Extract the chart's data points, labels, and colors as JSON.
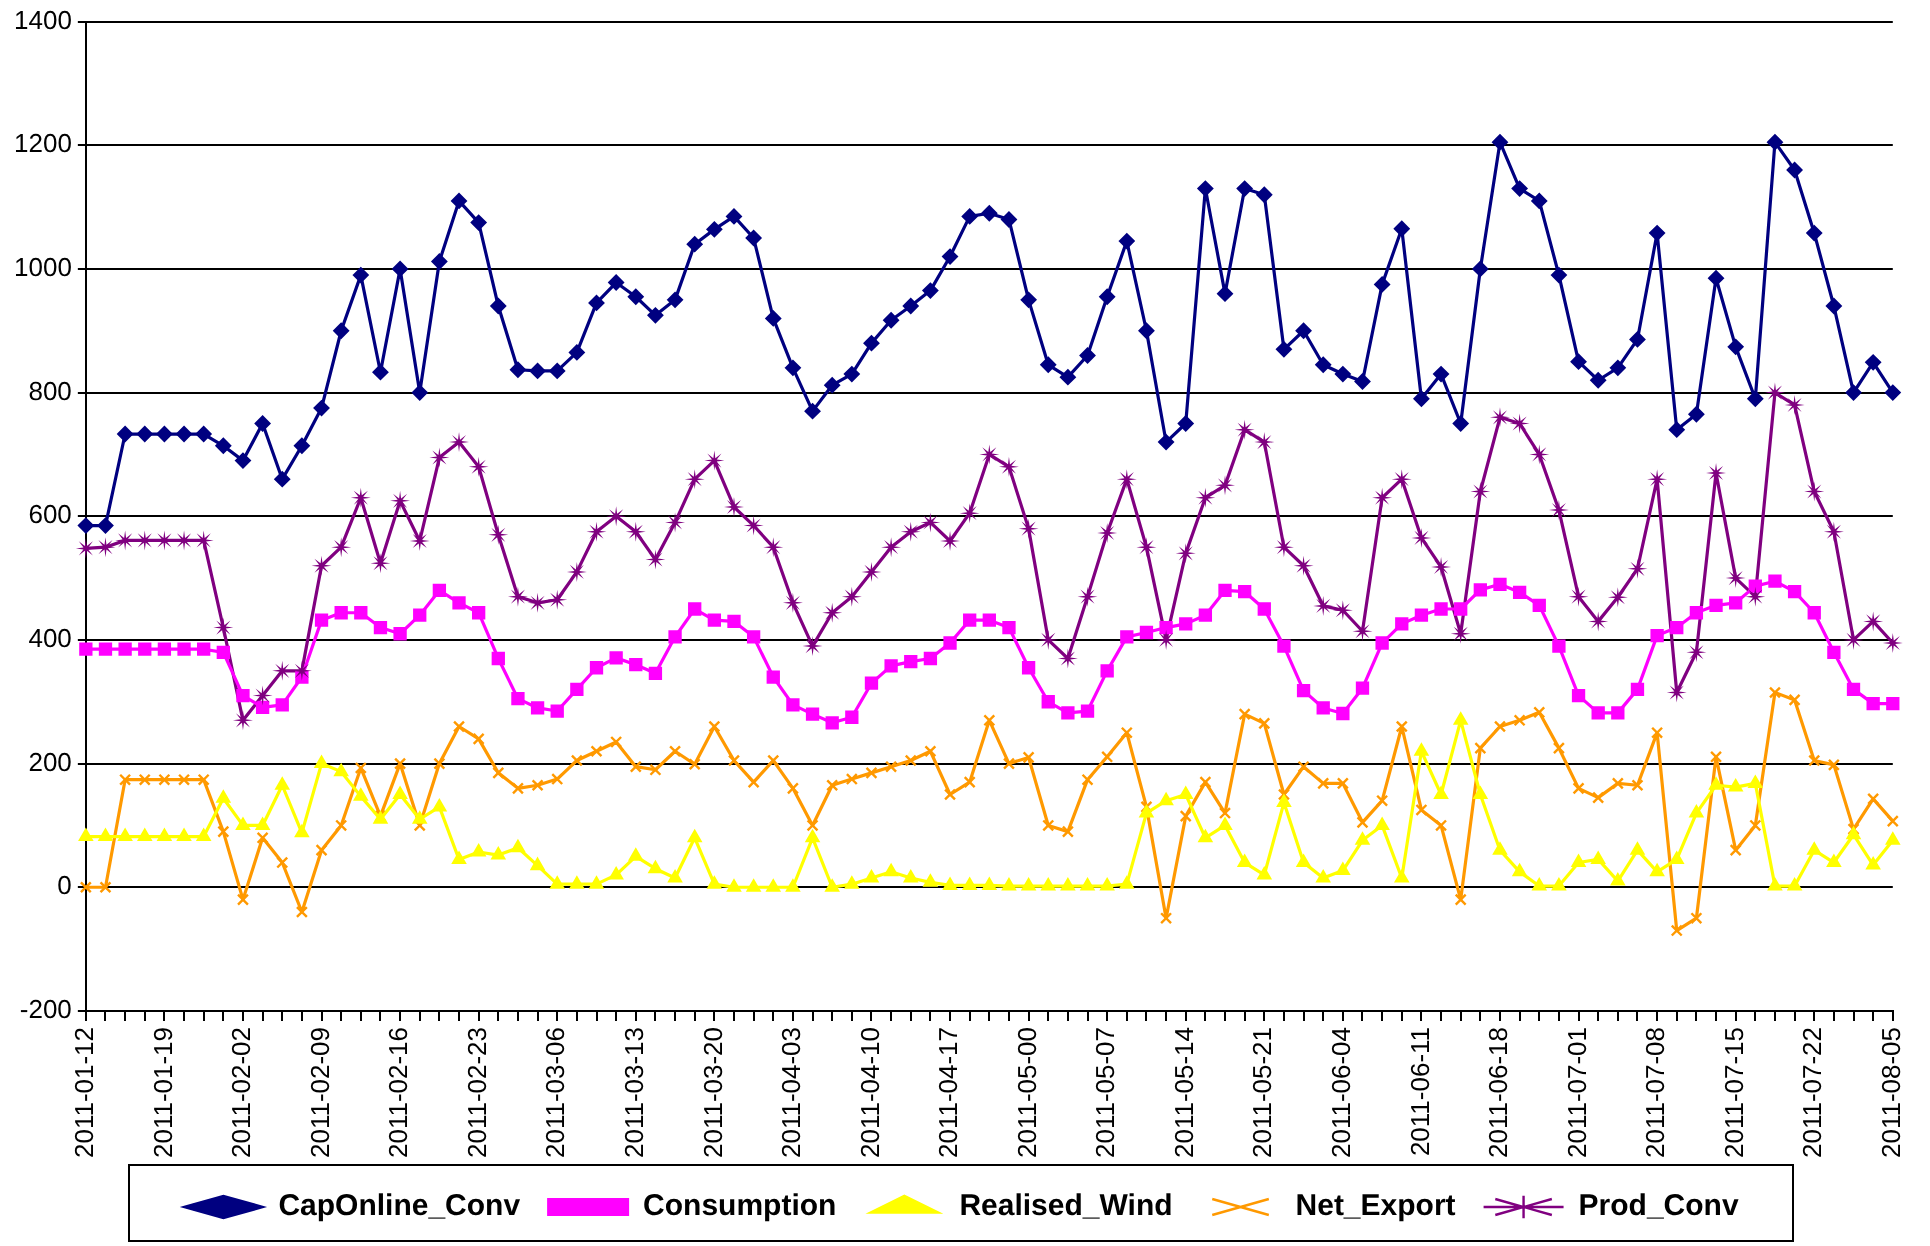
{
  "chart_data": {
    "type": "line",
    "categories": [
      "2011-01-12",
      null,
      null,
      null,
      "2011-01-19",
      null,
      null,
      null,
      "2011-02-02",
      null,
      null,
      null,
      "2011-02-09",
      null,
      null,
      null,
      "2011-02-16",
      null,
      null,
      null,
      "2011-02-23",
      null,
      null,
      null,
      "2011-03-06",
      null,
      null,
      null,
      "2011-03-13",
      null,
      null,
      null,
      "2011-03-20",
      null,
      null,
      null,
      "2011-04-03",
      null,
      null,
      null,
      "2011-04-10",
      null,
      null,
      null,
      "2011-04-17",
      null,
      null,
      null,
      "2011-05-00",
      null,
      null,
      null,
      "2011-05-07",
      null,
      null,
      null,
      "2011-05-14",
      null,
      null,
      null,
      "2011-05-21",
      null,
      null,
      null,
      "2011-06-04",
      null,
      null,
      null,
      "2011-06-11",
      null,
      null,
      null,
      "2011-06-18",
      null,
      null,
      null,
      "2011-07-01",
      null,
      null,
      null,
      "2011-07-08",
      null,
      null,
      null,
      "2011-07-15",
      null,
      null,
      null,
      "2011-07-22",
      null,
      null,
      null,
      "2011-08-05"
    ],
    "series": [
      {
        "name": "CapOnline_Conv",
        "color": "#000080",
        "marker": "diamond",
        "values": [
          585,
          585,
          733,
          733,
          733,
          733,
          733,
          714,
          690,
          750,
          660,
          714,
          775,
          900,
          990,
          833,
          1000,
          800,
          1012,
          1110,
          1075,
          940,
          837,
          835,
          835,
          865,
          945,
          978,
          955,
          925,
          950,
          1040,
          1064,
          1085,
          1050,
          920,
          840,
          770,
          812,
          830,
          880,
          917,
          940,
          965,
          1020,
          1085,
          1090,
          1080,
          950,
          845,
          825,
          860,
          955,
          1045,
          900,
          720,
          750,
          1130,
          960,
          1130,
          1120,
          870,
          900,
          845,
          830,
          818,
          975,
          1065,
          790,
          830,
          750,
          1000,
          1205,
          1130,
          1110,
          990,
          850,
          820,
          840,
          886,
          1058,
          740,
          765,
          985,
          874,
          790,
          1205,
          1160,
          1058,
          940,
          800,
          849,
          800
        ]
      },
      {
        "name": "Consumption",
        "color": "#ff00ff",
        "marker": "square",
        "values": [
          385,
          385,
          385,
          385,
          385,
          385,
          385,
          380,
          310,
          291,
          295,
          340,
          432,
          444,
          444,
          420,
          410,
          440,
          480,
          460,
          444,
          370,
          305,
          290,
          285,
          320,
          355,
          371,
          360,
          346,
          405,
          450,
          432,
          430,
          405,
          340,
          295,
          280,
          266,
          275,
          330,
          358,
          365,
          370,
          395,
          432,
          432,
          420,
          355,
          300,
          282,
          285,
          350,
          405,
          412,
          420,
          426,
          440,
          480,
          478,
          450,
          390,
          318,
          290,
          281,
          322,
          395,
          426,
          440,
          450,
          450,
          481,
          490,
          477,
          456,
          390,
          310,
          282,
          282,
          320,
          407,
          420,
          444,
          456,
          460,
          487,
          495,
          478,
          444,
          380,
          320,
          297,
          297
        ]
      },
      {
        "name": "Realised_Wind",
        "color": "#ffff00",
        "marker": "triangle",
        "values": [
          82,
          82,
          82,
          82,
          82,
          82,
          82,
          144,
          100,
          100,
          165,
          88,
          200,
          187,
          147,
          110,
          150,
          110,
          130,
          45,
          57,
          52,
          64,
          35,
          5,
          5,
          5,
          20,
          50,
          30,
          15,
          80,
          5,
          0,
          0,
          0,
          0,
          80,
          0,
          5,
          15,
          25,
          15,
          8,
          3,
          3,
          3,
          2,
          2,
          2,
          2,
          2,
          2,
          5,
          120,
          140,
          150,
          80,
          100,
          40,
          20,
          137,
          40,
          15,
          27,
          76,
          100,
          15,
          220,
          150,
          270,
          150,
          60,
          25,
          2,
          2,
          40,
          45,
          10,
          60,
          25,
          45,
          120,
          165,
          162,
          168,
          2,
          2,
          60,
          40,
          85,
          36,
          76
        ]
      },
      {
        "name": "Net_Export",
        "color": "#ff9900",
        "marker": "cross",
        "values": [
          0,
          0,
          174,
          174,
          174,
          174,
          174,
          90,
          -20,
          80,
          40,
          -40,
          60,
          100,
          193,
          115,
          200,
          100,
          200,
          260,
          240,
          185,
          160,
          165,
          175,
          205,
          220,
          235,
          195,
          190,
          220,
          199,
          260,
          205,
          170,
          205,
          160,
          100,
          165,
          175,
          185,
          195,
          205,
          220,
          150,
          170,
          270,
          200,
          210,
          100,
          90,
          174,
          211,
          250,
          130,
          -50,
          115,
          170,
          120,
          280,
          265,
          150,
          195,
          168,
          168,
          105,
          140,
          260,
          125,
          100,
          -20,
          225,
          260,
          270,
          283,
          225,
          160,
          145,
          168,
          165,
          250,
          -70,
          -50,
          211,
          60,
          100,
          315,
          303,
          205,
          198,
          94,
          143,
          107
        ]
      },
      {
        "name": "Prod_Conv",
        "color": "#800080",
        "marker": "star",
        "values": [
          548,
          550,
          561,
          561,
          561,
          561,
          561,
          420,
          270,
          310,
          350,
          350,
          520,
          550,
          630,
          524,
          625,
          560,
          695,
          720,
          680,
          570,
          470,
          460,
          465,
          510,
          575,
          600,
          575,
          530,
          590,
          660,
          690,
          615,
          585,
          550,
          460,
          390,
          444,
          470,
          510,
          550,
          575,
          590,
          560,
          605,
          700,
          680,
          580,
          400,
          370,
          470,
          573,
          660,
          550,
          400,
          540,
          630,
          650,
          740,
          720,
          550,
          520,
          455,
          448,
          414,
          630,
          660,
          565,
          518,
          410,
          640,
          760,
          750,
          700,
          610,
          470,
          430,
          469,
          515,
          660,
          315,
          380,
          670,
          500,
          470,
          800,
          780,
          640,
          575,
          400,
          430,
          395
        ]
      }
    ],
    "ylim": [
      -200,
      1400
    ],
    "yticks": [
      -200,
      0,
      200,
      400,
      600,
      800,
      1000,
      1200,
      1400
    ],
    "grid": "y",
    "legend": "bottom"
  }
}
